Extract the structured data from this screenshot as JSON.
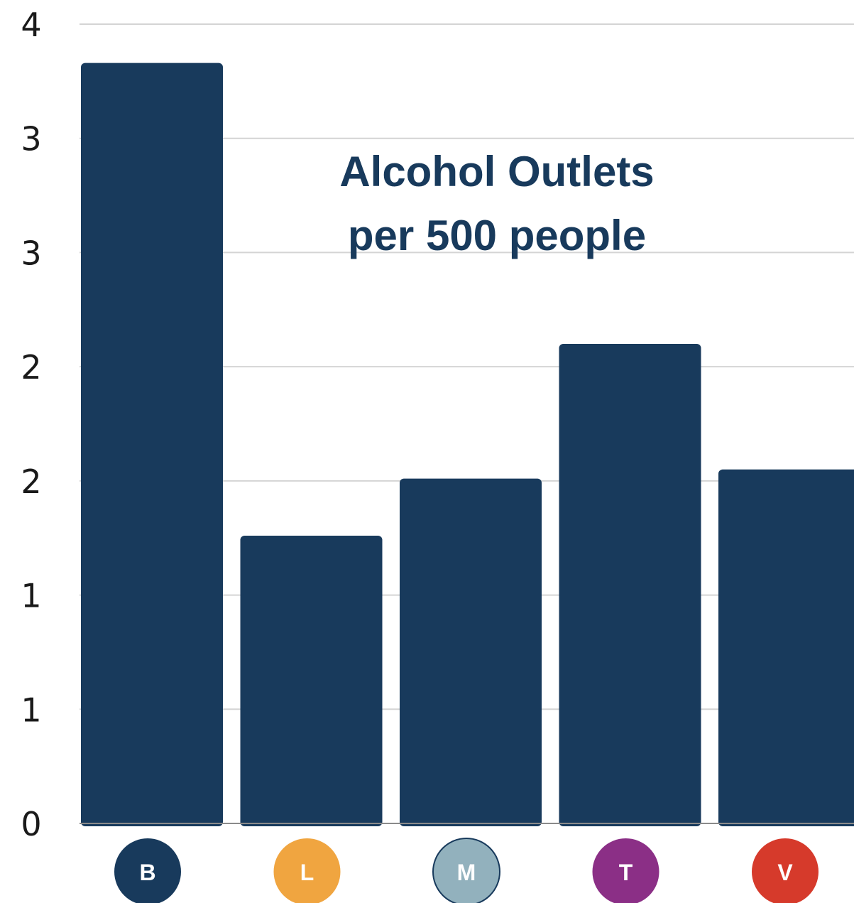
{
  "chart_data": {
    "type": "bar",
    "title_lines": [
      "Alcohol Outlets",
      "per 500 people"
    ],
    "categories": [
      "B",
      "L",
      "M",
      "T",
      "V"
    ],
    "values": [
      3.33,
      1.26,
      1.51,
      2.1,
      1.55
    ],
    "y_tick_labels": [
      "0",
      "1",
      "1",
      "2",
      "2",
      "3",
      "3",
      "4"
    ],
    "ylim": [
      0,
      3.5
    ],
    "grid": true,
    "bar_color": "#183a5c",
    "badge_colors": [
      "#183a5c",
      "#f0a540",
      "#92b1bd",
      "#8b2f86",
      "#d63a2b"
    ],
    "badge_border_colors": [
      "none",
      "none",
      "#183a5c",
      "none",
      "none"
    ]
  }
}
